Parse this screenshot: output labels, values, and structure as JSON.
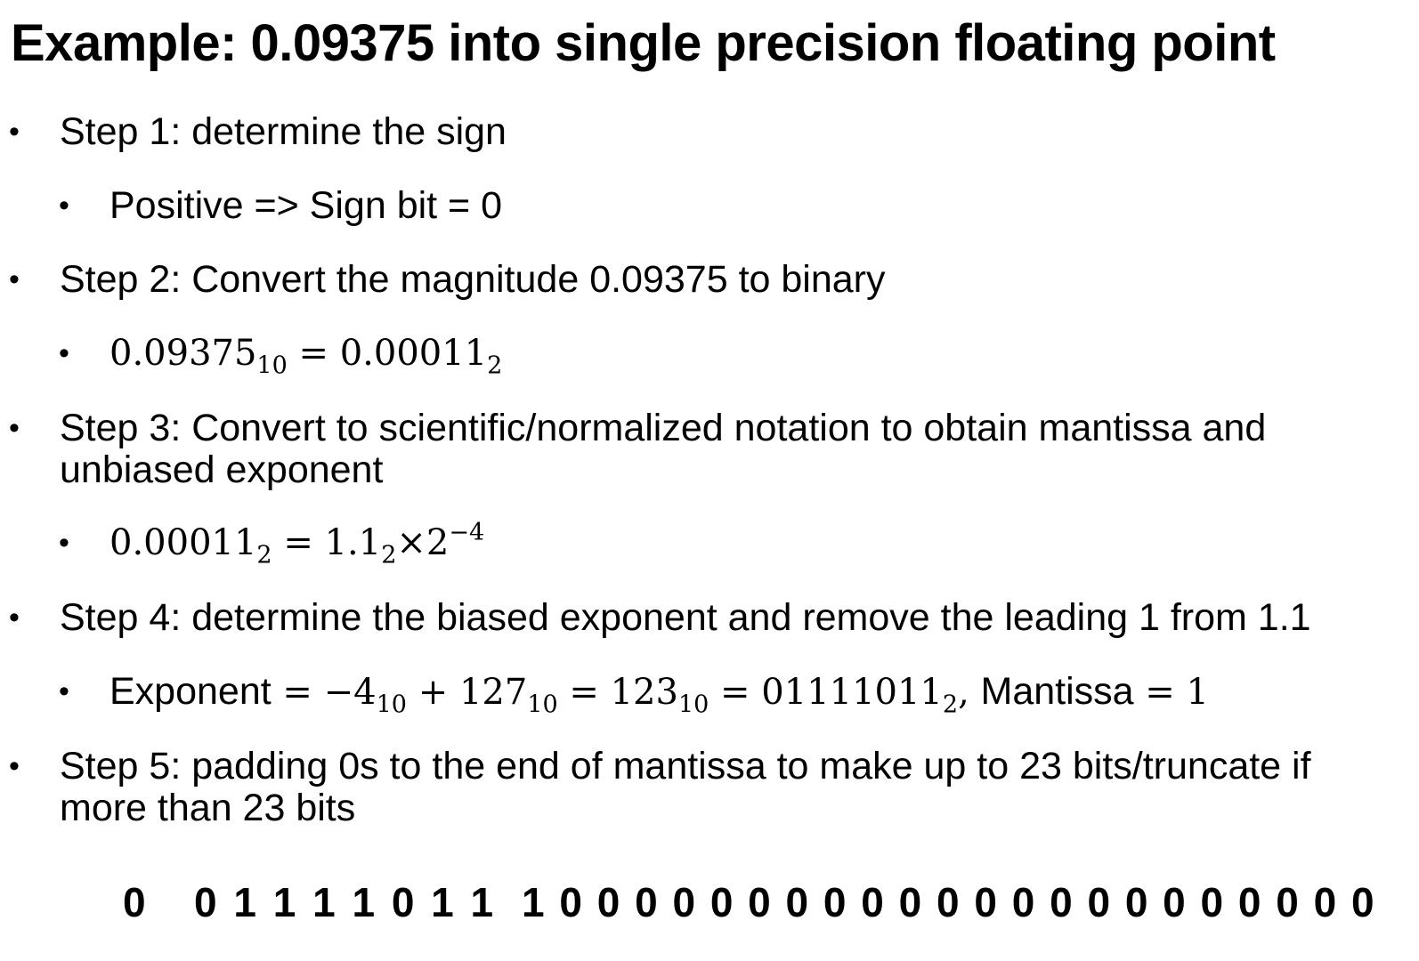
{
  "title": "Example: 0.09375 into single precision floating point",
  "bullet_glyph": "•",
  "steps": [
    {
      "text": "Step 1: determine the sign",
      "sub": {
        "text": "Positive => Sign bit = 0"
      }
    },
    {
      "text": "Step 2: Convert the magnitude 0.09375 to binary",
      "sub": {
        "m1": "0.09375",
        "m1_sub": "10",
        "eq": " = ",
        "m2": "0.00011",
        "m2_sub": "2"
      }
    },
    {
      "text_line1": "Step 3: Convert to scientific/normalized notation to obtain mantissa and",
      "text_line2": "unbiased exponent",
      "sub": {
        "m1": "0.00011",
        "m1_sub": "2",
        "eq": " = ",
        "m2": "1.1",
        "m2_sub": "2",
        "times": "×2",
        "exp": "−4"
      }
    },
    {
      "text": "Step 4: determine the biased exponent and remove the leading 1 from 1.1",
      "sub": {
        "label": "Exponent",
        "eq": " = ",
        "a": "−4",
        "a_sub": "10",
        "plus": " + ",
        "b": "127",
        "b_sub": "10",
        "c": "123",
        "c_sub": "10",
        "d": "01111011",
        "d_sub": "2",
        "comma": ", ",
        "mant_label": "Mantissa",
        "mant_val": "1"
      }
    },
    {
      "text_line1": "Step 5: padding 0s to the end of mantissa to make up to 23 bits/truncate if",
      "text_line2": "more than 23 bits"
    }
  ],
  "result_bits": {
    "sign": "0",
    "exponent": "0 1 1 1 1 0 1 1",
    "mantissa": "1 0 0 0 0 0 0 0 0 0 0 0 0 0 0 0 0 0 0 0 0 0 0"
  }
}
